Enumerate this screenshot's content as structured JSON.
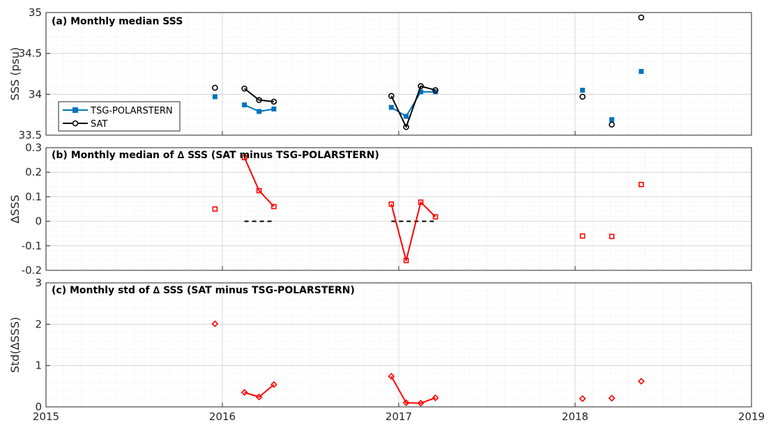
{
  "chart_data": [
    {
      "type": "line",
      "title": "(a) Monthly median SSS",
      "ylabel": "SSS (psu)",
      "xlim": [
        2015,
        2019
      ],
      "ylim": [
        33.5,
        35
      ],
      "yticks": [
        "33.5",
        "34",
        "34.5",
        "35"
      ],
      "xticks": [
        "2015",
        "2016",
        "2017",
        "2018",
        "2019"
      ],
      "grid": true,
      "legend": "upper-left",
      "series": [
        {
          "name": "TSG-POLARSTERN",
          "color": "#0072BD",
          "marker": "square-filled",
          "segments": [
            [
              [
                2015.958,
                33.97
              ]
            ],
            [
              [
                2016.125,
                33.87
              ],
              [
                2016.208,
                33.79
              ],
              [
                2016.292,
                33.82
              ]
            ],
            [
              [
                2016.958,
                33.84
              ],
              [
                2017.042,
                33.73
              ],
              [
                2017.125,
                34.03
              ],
              [
                2017.208,
                34.03
              ]
            ],
            [
              [
                2018.042,
                34.05
              ]
            ],
            [
              [
                2018.208,
                33.69
              ]
            ],
            [
              [
                2018.375,
                34.28
              ]
            ]
          ]
        },
        {
          "name": "SAT",
          "color": "#000000",
          "marker": "circle-open",
          "segments": [
            [
              [
                2015.958,
                34.08
              ]
            ],
            [
              [
                2016.125,
                34.07
              ],
              [
                2016.208,
                33.93
              ],
              [
                2016.292,
                33.91
              ]
            ],
            [
              [
                2016.958,
                33.98
              ],
              [
                2017.042,
                33.6
              ],
              [
                2017.125,
                34.1
              ],
              [
                2017.208,
                34.05
              ]
            ],
            [
              [
                2018.042,
                33.97
              ]
            ],
            [
              [
                2018.208,
                33.63
              ]
            ],
            [
              [
                2018.375,
                34.94
              ]
            ]
          ]
        }
      ]
    },
    {
      "type": "line",
      "title": "(b) Monthly median of ∆ SSS (SAT minus TSG-POLARSTERN)",
      "ylabel": "∆SSS",
      "xlim": [
        2015,
        2019
      ],
      "ylim": [
        -0.2,
        0.3
      ],
      "yticks": [
        "-0.2",
        "-0.1",
        "0",
        "0.1",
        "0.2",
        "0.3"
      ],
      "grid": true,
      "series": [
        {
          "color": "#FF0000",
          "marker": "square-open",
          "segments": [
            [
              [
                2015.958,
                0.05
              ]
            ],
            [
              [
                2016.125,
                0.26
              ],
              [
                2016.208,
                0.125
              ],
              [
                2016.292,
                0.06
              ]
            ],
            [
              [
                2016.958,
                0.07
              ],
              [
                2017.042,
                -0.16
              ],
              [
                2017.125,
                0.078
              ],
              [
                2017.208,
                0.018
              ]
            ],
            [
              [
                2018.042,
                -0.06
              ]
            ],
            [
              [
                2018.208,
                -0.062
              ]
            ],
            [
              [
                2018.375,
                0.15
              ]
            ]
          ]
        }
      ],
      "reference_lines": [
        {
          "style": "dashed",
          "color": "#000000",
          "x": [
            2016.125,
            2016.292
          ],
          "y": 0
        },
        {
          "style": "dashed",
          "color": "#000000",
          "x": [
            2016.958,
            2017.208
          ],
          "y": 0
        }
      ]
    },
    {
      "type": "line",
      "title": "(c) Monthly std of ∆ SSS (SAT minus TSG-POLARSTERN)",
      "ylabel": "Std(∆SSS)",
      "xlim": [
        2015,
        2019
      ],
      "ylim": [
        0,
        3
      ],
      "yticks": [
        "0",
        "1",
        "2",
        "3"
      ],
      "xticks": [
        "2015",
        "2016",
        "2017",
        "2018",
        "2019"
      ],
      "grid": true,
      "series": [
        {
          "color": "#FF0000",
          "marker": "diamond-open",
          "segments": [
            [
              [
                2015.958,
                2.01
              ]
            ],
            [
              [
                2016.125,
                0.35
              ],
              [
                2016.208,
                0.24
              ],
              [
                2016.292,
                0.54
              ]
            ],
            [
              [
                2016.958,
                0.74
              ],
              [
                2017.042,
                0.1
              ],
              [
                2017.125,
                0.09
              ],
              [
                2017.208,
                0.22
              ]
            ],
            [
              [
                2018.042,
                0.2
              ]
            ],
            [
              [
                2018.208,
                0.21
              ]
            ],
            [
              [
                2018.375,
                0.62
              ]
            ]
          ]
        }
      ]
    }
  ]
}
